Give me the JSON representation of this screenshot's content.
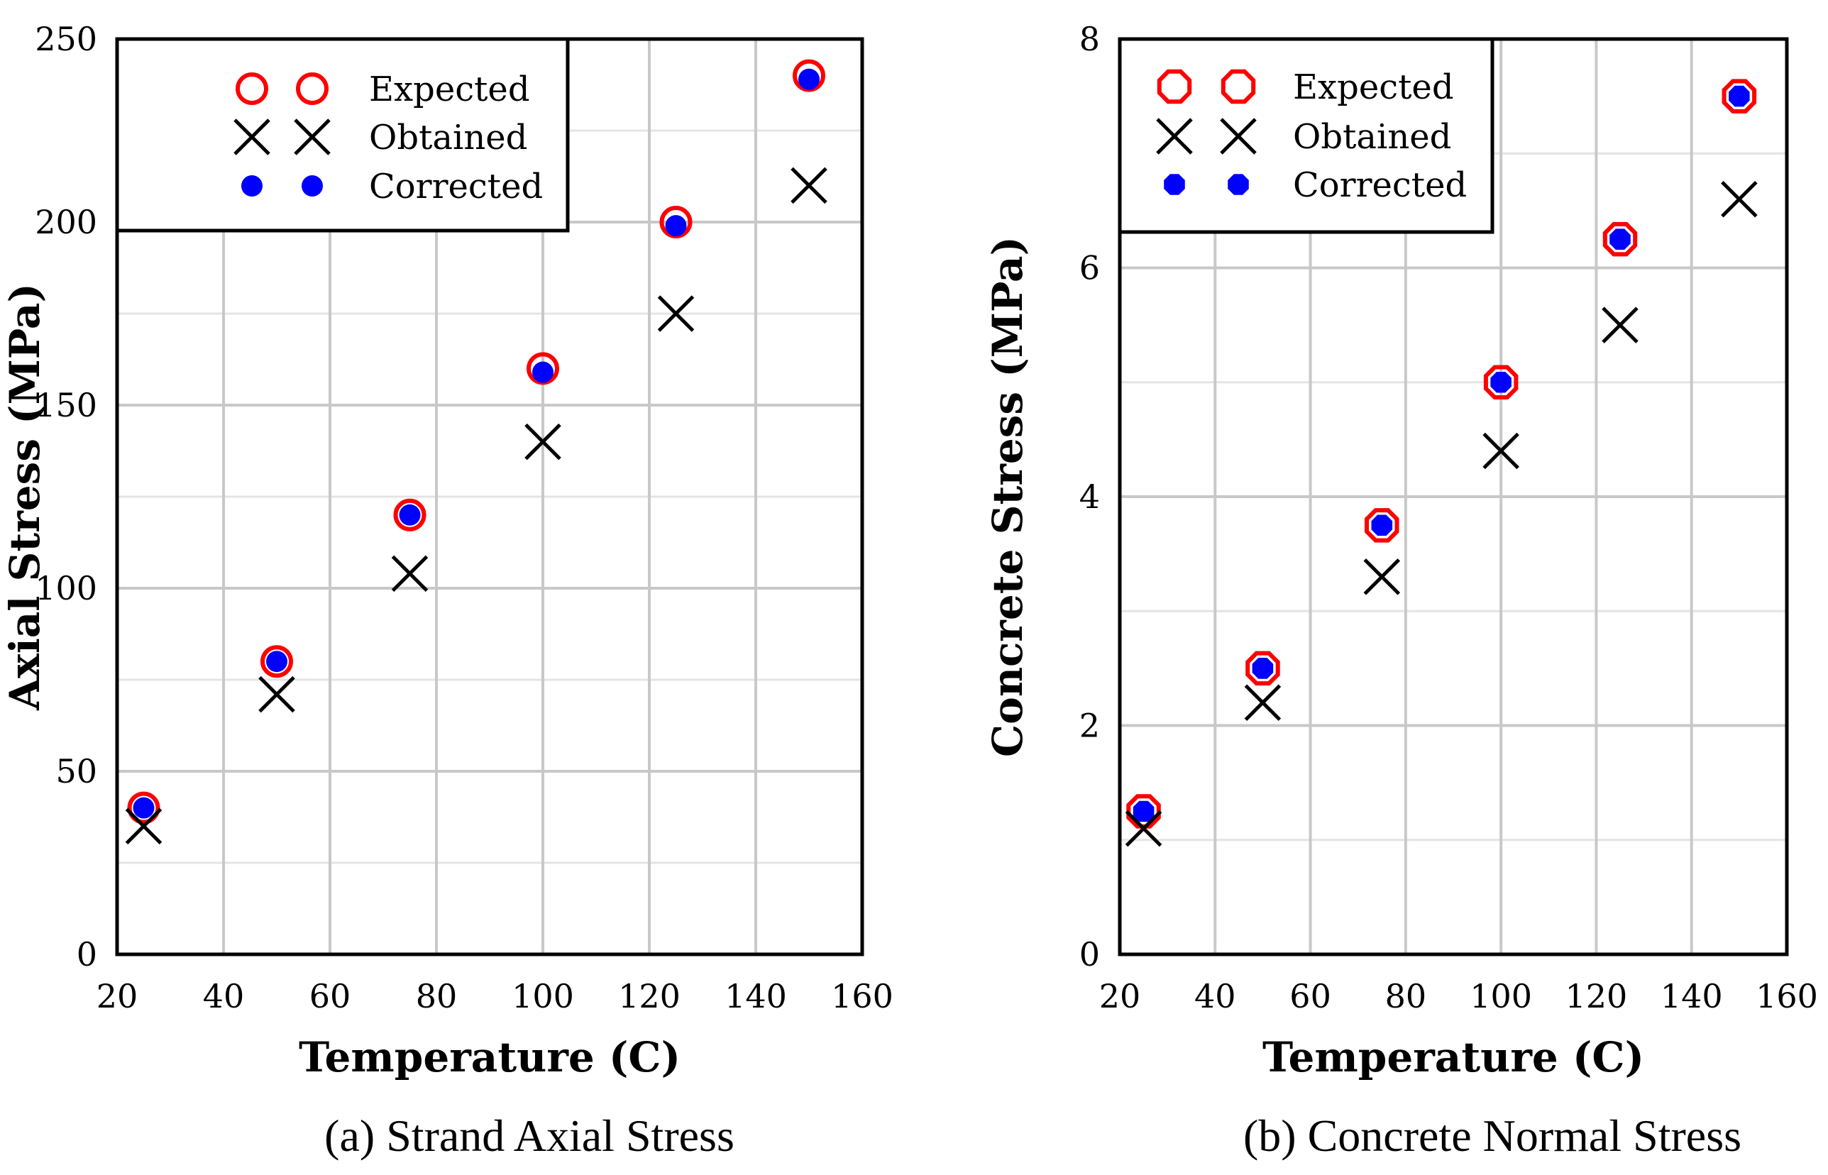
{
  "chart_data": [
    {
      "type": "scatter",
      "caption": "(a) Strand Axial Stress",
      "xlabel": "Temperature (C)",
      "ylabel": "Axial Stress (MPa)",
      "xlim": [
        20,
        160
      ],
      "ylim": [
        0,
        250
      ],
      "xticks": [
        20,
        40,
        60,
        80,
        100,
        120,
        140,
        160
      ],
      "yticks": [
        0,
        50,
        100,
        150,
        200,
        250
      ],
      "grid": true,
      "legend": "top-left",
      "series": [
        {
          "name": "Expected",
          "marker": "open-circle",
          "color": "#ff0000",
          "points": [
            [
              25,
              40
            ],
            [
              50,
              80
            ],
            [
              75,
              120
            ],
            [
              100,
              160
            ],
            [
              125,
              200
            ],
            [
              150,
              240
            ]
          ]
        },
        {
          "name": "Obtained",
          "marker": "x",
          "color": "#000000",
          "points": [
            [
              25,
              35
            ],
            [
              50,
              71
            ],
            [
              75,
              104
            ],
            [
              100,
              140
            ],
            [
              125,
              175
            ],
            [
              150,
              210
            ]
          ]
        },
        {
          "name": "Corrected",
          "marker": "filled-circle",
          "color": "#0000ff",
          "points": [
            [
              25,
              40
            ],
            [
              50,
              80
            ],
            [
              75,
              120
            ],
            [
              100,
              159
            ],
            [
              125,
              199
            ],
            [
              150,
              239
            ]
          ]
        }
      ]
    },
    {
      "type": "scatter",
      "caption": "(b) Concrete Normal Stress",
      "xlabel": "Temperature (C)",
      "ylabel": "Concrete Stress (MPa)",
      "xlim": [
        20,
        160
      ],
      "ylim": [
        0,
        8
      ],
      "xticks": [
        20,
        40,
        60,
        80,
        100,
        120,
        140,
        160
      ],
      "yticks": [
        0,
        2,
        4,
        6,
        8
      ],
      "grid": true,
      "legend": "top-left",
      "series": [
        {
          "name": "Expected",
          "marker": "open-octagon",
          "color": "#ff0000",
          "points": [
            [
              25,
              1.25
            ],
            [
              50,
              2.5
            ],
            [
              75,
              3.75
            ],
            [
              100,
              5.0
            ],
            [
              125,
              6.25
            ],
            [
              150,
              7.5
            ]
          ]
        },
        {
          "name": "Obtained",
          "marker": "x",
          "color": "#000000",
          "points": [
            [
              25,
              1.1
            ],
            [
              50,
              2.2
            ],
            [
              75,
              3.3
            ],
            [
              100,
              4.4
            ],
            [
              125,
              5.5
            ],
            [
              150,
              6.6
            ]
          ]
        },
        {
          "name": "Corrected",
          "marker": "filled-octagon",
          "color": "#0000ff",
          "points": [
            [
              25,
              1.25
            ],
            [
              50,
              2.5
            ],
            [
              75,
              3.75
            ],
            [
              100,
              5.0
            ],
            [
              125,
              6.25
            ],
            [
              150,
              7.5
            ]
          ]
        }
      ]
    }
  ]
}
